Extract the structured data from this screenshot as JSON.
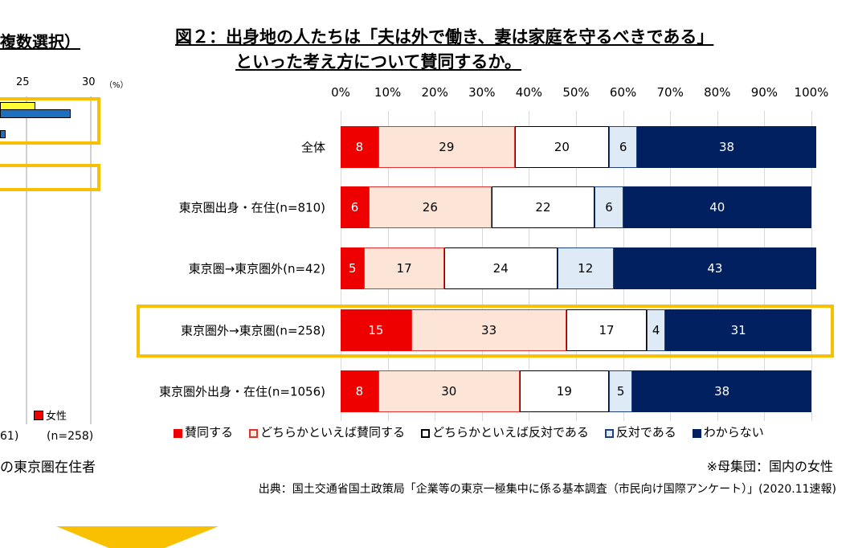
{
  "left_panel": {
    "title_fragment": "複数選択）",
    "ticks": [
      "25",
      "30"
    ],
    "unit": "（%）",
    "legend_label": "女性",
    "n_left": "61)",
    "n_right": "(n=258)",
    "caption": "の東京圏在住者"
  },
  "chart_data": {
    "type": "bar",
    "orientation": "horizontal",
    "stacked": true,
    "title_line1": "図２：出身地の人たちは「夫は外で働き、妻は家庭を守るべきである」",
    "title_line2": "といった考え方について賛同するか。",
    "xlim": [
      0,
      100
    ],
    "x_ticks": [
      "0%",
      "10%",
      "20%",
      "30%",
      "40%",
      "50%",
      "60%",
      "70%",
      "80%",
      "90%",
      "100%"
    ],
    "categories": [
      "全体",
      "東京圏出身・在住(n=810)",
      "東京圏→東京圏外(n=42)",
      "東京圏外→東京圏(n=258)",
      "東京圏外出身・在住(n=1056)"
    ],
    "highlighted_category": "東京圏外→東京圏(n=258)",
    "legend_position": "bottom",
    "grid": true,
    "series": [
      {
        "name": "賛同する",
        "values": [
          8,
          6,
          5,
          15,
          8
        ],
        "color": "#ee0000",
        "border": "#ee0000"
      },
      {
        "name": "どちらかといえば賛同する",
        "values": [
          29,
          26,
          17,
          33,
          30
        ],
        "color": "#fce4d6",
        "border": "#e03030"
      },
      {
        "name": "どちらかといえば反対である",
        "values": [
          20,
          22,
          24,
          17,
          19
        ],
        "color": "#ffffff",
        "border": "#000000"
      },
      {
        "name": "反対である",
        "values": [
          6,
          6,
          12,
          4,
          5
        ],
        "color": "#deebf7",
        "border": "#1f3f7f"
      },
      {
        "name": "わからない",
        "values": [
          38,
          40,
          43,
          31,
          38
        ],
        "color": "#002060",
        "border": "#002060"
      }
    ]
  },
  "footnote": "※母集団：国内の女性",
  "source": "出典：国土交通省国土政策局「企業等の東京一極集中に係る基本調査（市民向け国際アンケート）」(2020.11速報)"
}
